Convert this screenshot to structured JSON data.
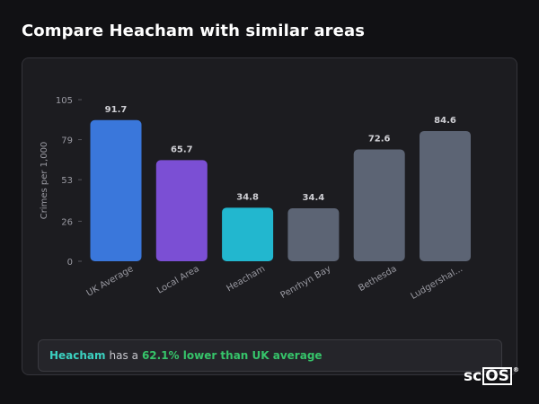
{
  "page": {
    "title": "Compare Heacham with similar areas"
  },
  "colors": {
    "uk_average": "#3a77db",
    "local_area": "#7b4fd4",
    "highlight": "#22b7cf",
    "other": "#5c6474",
    "summary_name": "#3bd1c0",
    "summary_pct": "#36c46a"
  },
  "chart_data": {
    "type": "bar",
    "categories": [
      "UK Average",
      "Local Area",
      "Heacham",
      "Penrhyn Bay",
      "Bethesda",
      "Ludgershal..."
    ],
    "values": [
      91.7,
      65.7,
      34.8,
      34.4,
      72.6,
      84.6
    ],
    "value_labels": [
      "91.7",
      "65.7",
      "34.8",
      "34.4",
      "72.6",
      "84.6"
    ],
    "bar_colors": [
      "#3a77db",
      "#7b4fd4",
      "#22b7cf",
      "#5c6474",
      "#5c6474",
      "#5c6474"
    ],
    "ylabel": "Crimes per 1,000",
    "xlabel": "",
    "ylim": [
      0,
      105
    ],
    "yticks": [
      0,
      26,
      53,
      79,
      105
    ],
    "grid": false,
    "legend": "none"
  },
  "summary": {
    "area_name": "Heacham",
    "connector": "has a",
    "comparison": "62.1% lower than UK average"
  },
  "logo": {
    "text_sc": "sc",
    "text_os": "OS",
    "mark": "®"
  }
}
